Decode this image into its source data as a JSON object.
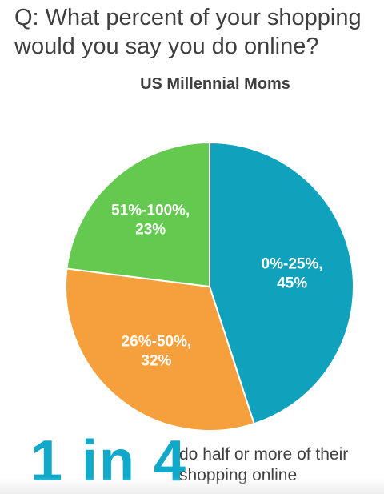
{
  "question": "Q: What percent of your shopping would you say you do online?",
  "chart_data": {
    "type": "pie",
    "title": "US Millennial Moms",
    "slices": [
      {
        "label": "0%-25%",
        "value_label": "45%",
        "value": 45,
        "color": "#10a2bd"
      },
      {
        "label": "26%-50%",
        "value_label": "32%",
        "value": 32,
        "color": "#f5a03d"
      },
      {
        "label": "51%-100%",
        "value_label": "23%",
        "value": 23,
        "color": "#63c94f"
      }
    ]
  },
  "callout": {
    "big": "1 in 4",
    "text": "do half or more of their shopping online",
    "color": "#10a9c9"
  }
}
